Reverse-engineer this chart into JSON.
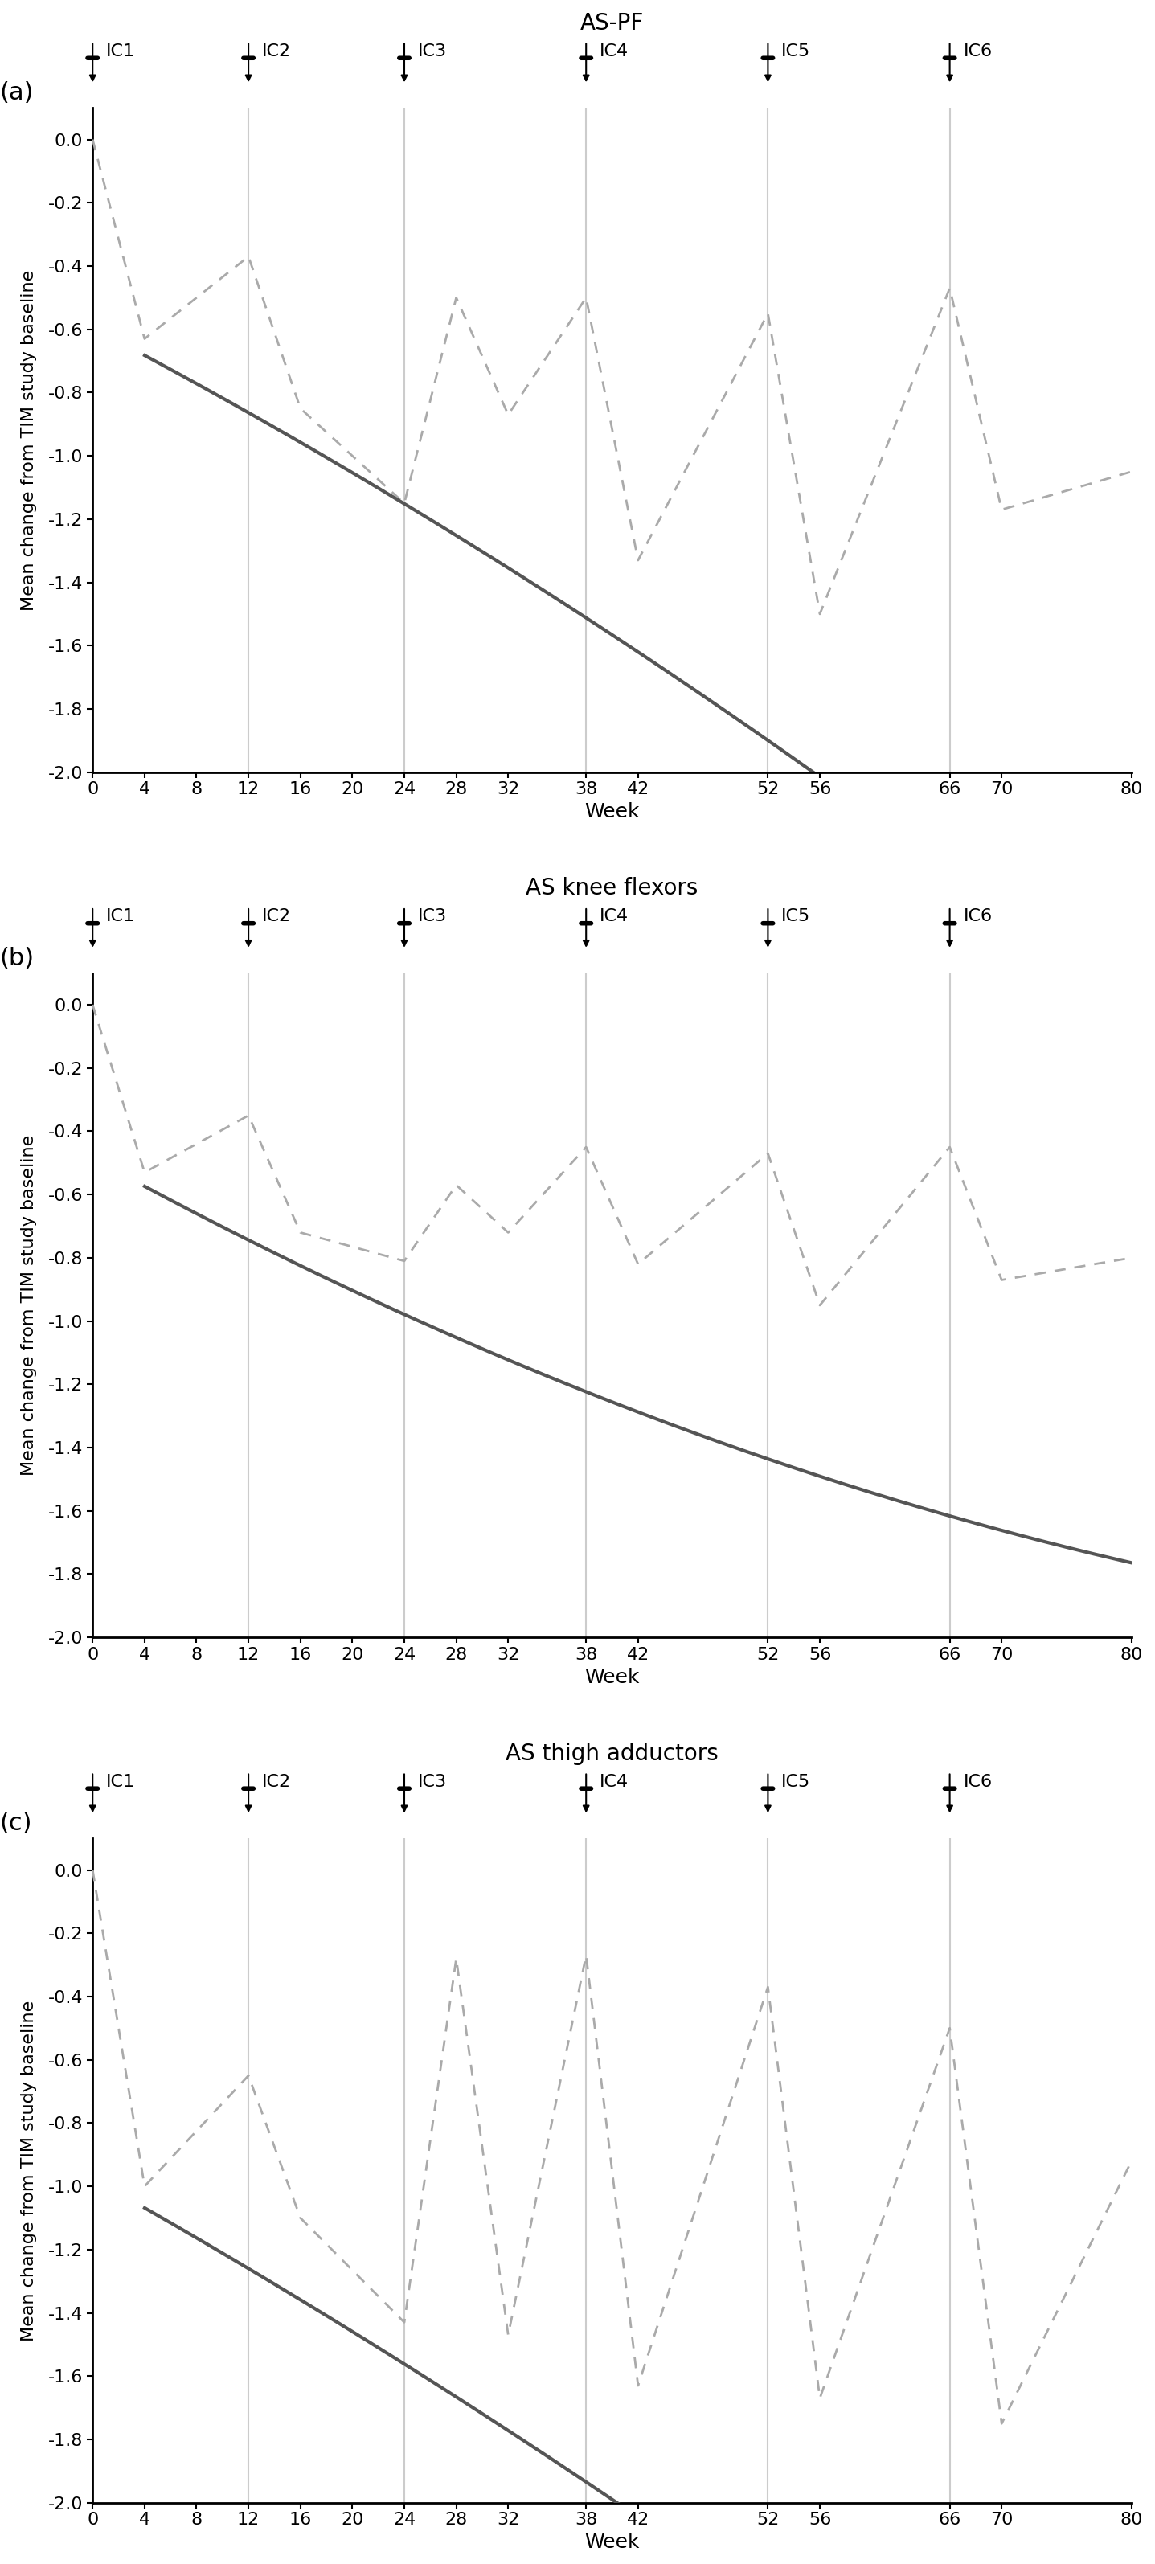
{
  "panels": [
    {
      "label": "(a)",
      "title": "AS-PF",
      "dashed_x": [
        0,
        4,
        12,
        16,
        24,
        28,
        32,
        38,
        42,
        52,
        56,
        66,
        70,
        80
      ],
      "dashed_y": [
        0.0,
        -0.63,
        -0.37,
        -0.85,
        -1.15,
        -0.5,
        -0.87,
        -0.5,
        -1.33,
        -0.55,
        -1.5,
        -0.47,
        -1.17,
        -1.05
      ],
      "solid_coeff": [
        -6.8e-05,
        -0.02155,
        -0.595
      ]
    },
    {
      "label": "(b)",
      "title": "AS knee flexors",
      "dashed_x": [
        0,
        4,
        12,
        16,
        24,
        28,
        32,
        38,
        42,
        52,
        56,
        66,
        70,
        80
      ],
      "dashed_y": [
        0.0,
        -0.53,
        -0.35,
        -0.72,
        -0.81,
        -0.57,
        -0.72,
        -0.45,
        -0.82,
        -0.47,
        -0.95,
        -0.45,
        -0.87,
        -0.8
      ],
      "solid_coeff": [
        8.2e-05,
        -0.02255,
        -0.485
      ]
    },
    {
      "label": "(c)",
      "title": "AS thigh adductors",
      "dashed_x": [
        0,
        4,
        12,
        16,
        24,
        28,
        32,
        38,
        42,
        52,
        56,
        66,
        70,
        80
      ],
      "dashed_y": [
        0.0,
        -1.0,
        -0.65,
        -1.1,
        -1.43,
        -0.28,
        -1.47,
        -0.27,
        -1.63,
        -0.37,
        -1.67,
        -0.5,
        -1.75,
        -0.92
      ],
      "solid_coeff": [
        -5.8e-05,
        -0.02305,
        -0.975
      ]
    }
  ],
  "injection_lines": [
    0,
    12,
    24,
    38,
    52,
    66
  ],
  "injection_labels": [
    "IC1",
    "IC2",
    "IC3",
    "IC4",
    "IC5",
    "IC6"
  ],
  "xlim": [
    0,
    80
  ],
  "ylim": [
    -2.0,
    0.1
  ],
  "xticks": [
    0,
    4,
    8,
    12,
    16,
    20,
    24,
    28,
    32,
    38,
    42,
    52,
    56,
    66,
    70,
    80
  ],
  "yticks": [
    0.0,
    -0.2,
    -0.4,
    -0.6,
    -0.8,
    -1.0,
    -1.2,
    -1.4,
    -1.6,
    -1.8,
    -2.0
  ],
  "xlabel": "Week",
  "ylabel": "Mean change from TIM study baseline",
  "dashed_color": "#aaaaaa",
  "solid_color": "#555555",
  "vline_color": "#cccccc",
  "background_color": "#ffffff"
}
